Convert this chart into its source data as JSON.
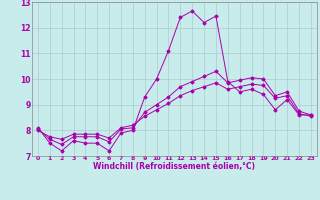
{
  "xlabel": "Windchill (Refroidissement éolien,°C)",
  "bg_color": "#c8ecec",
  "grid_color": "#aacccc",
  "line_color": "#aa00aa",
  "xlim": [
    -0.5,
    23.5
  ],
  "ylim": [
    7,
    13
  ],
  "yticks": [
    7,
    8,
    9,
    10,
    11,
    12,
    13
  ],
  "xticks": [
    0,
    1,
    2,
    3,
    4,
    5,
    6,
    7,
    8,
    9,
    10,
    11,
    12,
    13,
    14,
    15,
    16,
    17,
    18,
    19,
    20,
    21,
    22,
    23
  ],
  "series1_x": [
    0,
    1,
    2,
    3,
    4,
    5,
    6,
    7,
    8,
    9,
    10,
    11,
    12,
    13,
    14,
    15,
    16,
    17,
    18,
    19,
    20,
    21,
    22,
    23
  ],
  "series1_y": [
    8.1,
    7.5,
    7.2,
    7.6,
    7.5,
    7.5,
    7.2,
    7.9,
    8.0,
    9.3,
    10.0,
    11.1,
    12.4,
    12.65,
    12.2,
    12.45,
    9.9,
    9.5,
    9.6,
    9.4,
    8.8,
    9.2,
    8.6,
    8.6
  ],
  "series2_x": [
    0,
    1,
    2,
    3,
    4,
    5,
    6,
    7,
    8,
    9,
    10,
    11,
    12,
    13,
    14,
    15,
    16,
    17,
    18,
    19,
    20,
    21,
    22,
    23
  ],
  "series2_y": [
    8.05,
    7.65,
    7.45,
    7.75,
    7.75,
    7.75,
    7.55,
    8.05,
    8.1,
    8.7,
    9.0,
    9.3,
    9.7,
    9.9,
    10.1,
    10.3,
    9.85,
    9.95,
    10.05,
    10.0,
    9.35,
    9.5,
    8.75,
    8.6
  ],
  "series3_x": [
    0,
    1,
    2,
    3,
    4,
    5,
    6,
    7,
    8,
    9,
    10,
    11,
    12,
    13,
    14,
    15,
    16,
    17,
    18,
    19,
    20,
    21,
    22,
    23
  ],
  "series3_y": [
    8.0,
    7.75,
    7.65,
    7.85,
    7.85,
    7.85,
    7.7,
    8.1,
    8.2,
    8.55,
    8.8,
    9.05,
    9.35,
    9.55,
    9.7,
    9.85,
    9.6,
    9.7,
    9.8,
    9.75,
    9.25,
    9.35,
    8.65,
    8.55
  ]
}
